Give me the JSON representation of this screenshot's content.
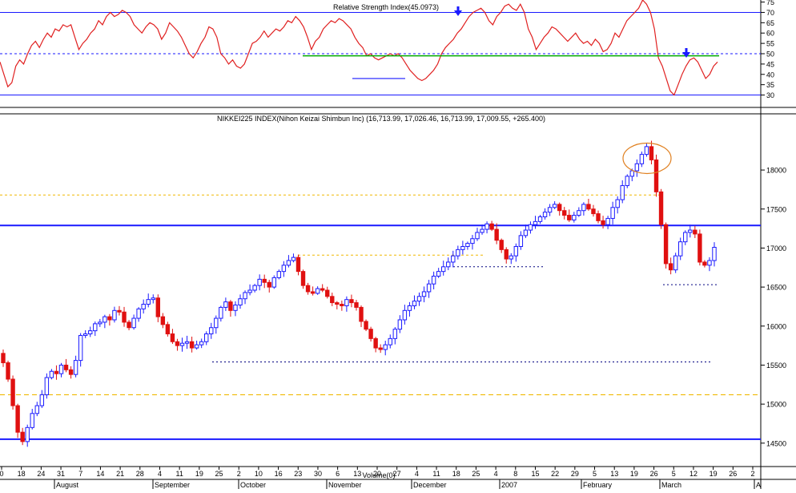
{
  "chart_data": [
    {
      "type": "line",
      "title": "Relative Strength Index(45.0973)",
      "ylim": [
        24,
        76
      ],
      "yticks": [
        30,
        35,
        40,
        45,
        50,
        55,
        60,
        65,
        70,
        75
      ],
      "levels": [
        30,
        50,
        70
      ],
      "grid": false,
      "series": [
        {
          "color": "#e02020",
          "values": [
            46,
            40,
            34,
            36,
            44,
            47,
            45,
            50,
            54,
            56,
            53,
            57,
            60,
            58,
            62,
            61,
            64,
            63,
            64,
            58,
            52,
            55,
            57,
            60,
            62,
            66,
            64,
            68,
            70,
            68,
            69,
            71,
            70,
            68,
            64,
            62,
            60,
            63,
            65,
            64,
            62,
            57,
            60,
            65,
            63,
            61,
            58,
            54,
            50,
            48,
            51,
            55,
            58,
            63,
            62,
            58,
            50,
            48,
            45,
            47,
            44,
            43,
            45,
            50,
            55,
            56,
            58,
            61,
            58,
            60,
            62,
            61,
            63,
            66,
            65,
            68,
            66,
            63,
            58,
            52,
            56,
            58,
            62,
            64,
            66,
            65,
            67,
            66,
            64,
            62,
            58,
            55,
            53,
            49,
            50,
            48,
            47,
            48,
            49,
            50,
            49,
            50,
            48,
            45,
            42,
            40,
            38,
            37,
            38,
            40,
            42,
            45,
            50,
            53,
            55,
            57,
            60,
            62,
            65,
            68,
            70,
            71,
            72,
            70,
            66,
            64,
            68,
            70,
            73,
            74,
            72,
            71,
            74,
            70,
            62,
            58,
            52,
            55,
            58,
            60,
            63,
            62,
            60,
            58,
            56,
            58,
            60,
            57,
            55,
            56,
            54,
            57,
            55,
            51,
            52,
            55,
            60,
            58,
            62,
            66,
            68,
            70,
            72,
            76,
            74,
            70,
            62,
            48,
            44,
            38,
            32,
            30,
            35,
            40,
            44,
            47,
            48,
            46,
            42,
            38,
            40,
            44,
            46
          ]
        },
        {
          "color": "#00aa00",
          "values": [
            49,
            49
          ]
        },
        {
          "color": "#1a1aff",
          "values": [
            38,
            38
          ]
        }
      ]
    },
    {
      "type": "candlestick",
      "title": "NIKKEI225 INDEX(Nihon Keizai Shimbun Inc) (16,713.99, 17,026.46, 16,713.99, 17,009.55, +265.400)",
      "ylim": [
        14200,
        18720
      ],
      "yticks": [
        14500,
        15000,
        15500,
        16000,
        16500,
        17000,
        17500,
        18000
      ],
      "levels": [
        14550,
        17290
      ],
      "dotted_levels": [
        15120,
        17680,
        15540,
        16760,
        16530,
        16910
      ],
      "grid": false,
      "series": [
        {
          "name": "",
          "values": [
            15530,
            15320,
            14980,
            14640,
            14520,
            14700,
            14880,
            14980,
            15120,
            15340,
            15420,
            15390,
            15500,
            15440,
            15380,
            15560,
            15880,
            15900,
            15940,
            16030,
            16050,
            16120,
            16080,
            16200,
            16180,
            16050,
            15980,
            16100,
            16220,
            16280,
            16340,
            16360,
            16120,
            16020,
            15900,
            15800,
            15750,
            15780,
            15800,
            15720,
            15760,
            15800,
            15900,
            15980,
            16100,
            16240,
            16310,
            16200,
            16270,
            16350,
            16430,
            16460,
            16520,
            16600,
            16560,
            16500,
            16620,
            16700,
            16780,
            16840,
            16880,
            16700,
            16520,
            16440,
            16420,
            16480,
            16460,
            16380,
            16300,
            16280,
            16260,
            16340,
            16300,
            16240,
            16060,
            15960,
            15840,
            15720,
            15700,
            15760,
            15840,
            15960,
            16080,
            16200,
            16260,
            16320,
            16380,
            16440,
            16540,
            16640,
            16700,
            16760,
            16820,
            16900,
            16980,
            17020,
            17060,
            17120,
            17200,
            17240,
            17310,
            17240,
            17100,
            16980,
            16860,
            16900,
            17020,
            17160,
            17230,
            17300,
            17340,
            17400,
            17460,
            17520,
            17560,
            17480,
            17420,
            17360,
            17420,
            17480,
            17560,
            17500,
            17440,
            17350,
            17300,
            17380,
            17520,
            17620,
            17800,
            17920,
            17990,
            18080,
            18200,
            18300,
            18130,
            17720,
            17300,
            16800,
            16720,
            16900,
            17080,
            17200,
            17230,
            17180,
            16820,
            16780,
            16840,
            17009.55
          ]
        }
      ],
      "x_ticks": [
        "0",
        "18",
        "24",
        "31",
        "7",
        "14",
        "21",
        "28",
        "4",
        "11",
        "19",
        "25",
        "2",
        "10",
        "16",
        "23",
        "30",
        "6",
        "13",
        "20",
        "27",
        "4",
        "11",
        "18",
        "25",
        "4",
        "8",
        "15",
        "22",
        "29",
        "5",
        "13",
        "19",
        "26",
        "5",
        "12",
        "19",
        "26",
        "2"
      ],
      "month_labels": [
        "August",
        "September",
        "October",
        "November",
        "December",
        "2007",
        "February",
        "March",
        "A"
      ],
      "volume_label": "Volume(0)"
    }
  ]
}
